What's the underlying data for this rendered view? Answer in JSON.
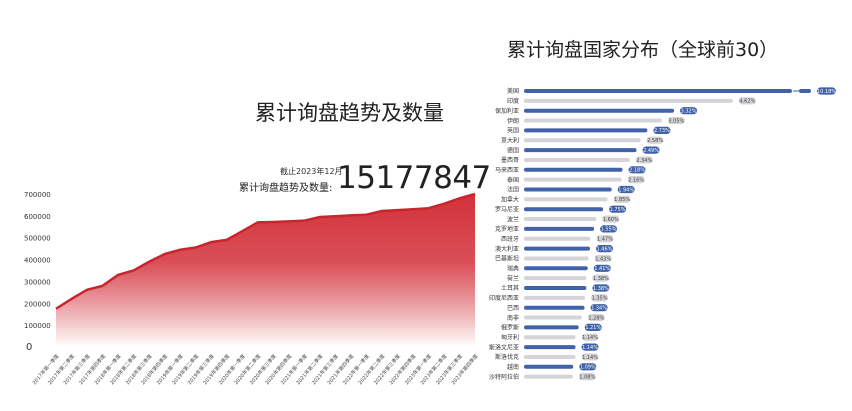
{
  "chart_data": [
    {
      "type": "area",
      "title": "累计询盘趋势及数量",
      "annotation": {
        "as_of": "截止2023年12月",
        "label": "累计询盘趋势及数量:",
        "total": "15177847"
      },
      "ylim": [
        0,
        700000
      ],
      "yticks": [
        "0",
        "100000",
        "200000",
        "300000",
        "400000",
        "500000",
        "600000",
        "700000"
      ],
      "categories": [
        "2017年第一季度",
        "2017年第二季度",
        "2017年第三季度",
        "2017年第四季度",
        "2018年第一季度",
        "2018年第二季度",
        "2018年第三季度",
        "2018年第四季度",
        "2019年第一季度",
        "2019年第二季度",
        "2019年第三季度",
        "2019年第四季度",
        "2020年第一季度",
        "2020年第二季度",
        "2020年第三季度",
        "2020年第四季度",
        "2021年第一季度",
        "2021年第二季度",
        "2021年第三季度",
        "2021年第四季度",
        "2022年第一季度",
        "2022年第二季度",
        "2022年第三季度",
        "2022年第四季度",
        "2023年第一季度",
        "2023年第二季度",
        "2023年第三季度",
        "2023年第四季度"
      ],
      "values": [
        175000,
        220000,
        262000,
        280000,
        330000,
        350000,
        390000,
        425000,
        445000,
        455000,
        480000,
        490000,
        530000,
        570000,
        572000,
        575000,
        578000,
        595000,
        598000,
        602000,
        605000,
        622000,
        626000,
        630000,
        635000,
        655000,
        680000,
        700000
      ],
      "colors": {
        "line": "#c8262d",
        "fill_top": "#d3313a",
        "fill_bottom": "#ffffff"
      },
      "grid": false
    },
    {
      "type": "bar",
      "orientation": "horizontal",
      "title": "累计询盘国家分布（全球前30）",
      "categories": [
        "美国",
        "印度",
        "保加利亚",
        "伊朗",
        "英国",
        "意大利",
        "德国",
        "墨西哥",
        "马来西亚",
        "泰国",
        "法国",
        "加拿大",
        "罗马尼亚",
        "波兰",
        "克罗地亚",
        "西班牙",
        "澳大利亚",
        "巴基斯坦",
        "瑞典",
        "荷兰",
        "土耳其",
        "印度尼西亚",
        "巴西",
        "南非",
        "俄罗斯",
        "匈牙利",
        "斯洛文尼亚",
        "斯洛伐克",
        "越南",
        "沙特阿拉伯"
      ],
      "values": [
        10.18,
        4.62,
        3.32,
        3.05,
        2.73,
        2.58,
        2.49,
        2.34,
        2.18,
        2.16,
        1.94,
        1.85,
        1.75,
        1.6,
        1.55,
        1.47,
        1.46,
        1.43,
        1.41,
        1.38,
        1.38,
        1.35,
        1.34,
        1.28,
        1.21,
        1.14,
        1.14,
        1.14,
        1.09,
        1.08
      ],
      "labels": [
        "10.18%",
        "4.62%",
        "3.32%",
        "3.05%",
        "2.73%",
        "2.58%",
        "2.49%",
        "2.34%",
        "2.18%",
        "2.16%",
        "1.94%",
        "1.85%",
        "1.75%",
        "1.60%",
        "1.55%",
        "1.47%",
        "1.46%",
        "1.43%",
        "1.41%",
        "1.38%",
        "1.38%",
        "1.35%",
        "1.34%",
        "1.28%",
        "1.21%",
        "1.14%",
        "1.14%",
        "1.14%",
        "1.09%",
        "1.08%"
      ],
      "broken_axis_first_bar": true,
      "colors": {
        "odd": "#3f62a8",
        "even": "#d4d4d8"
      }
    }
  ]
}
